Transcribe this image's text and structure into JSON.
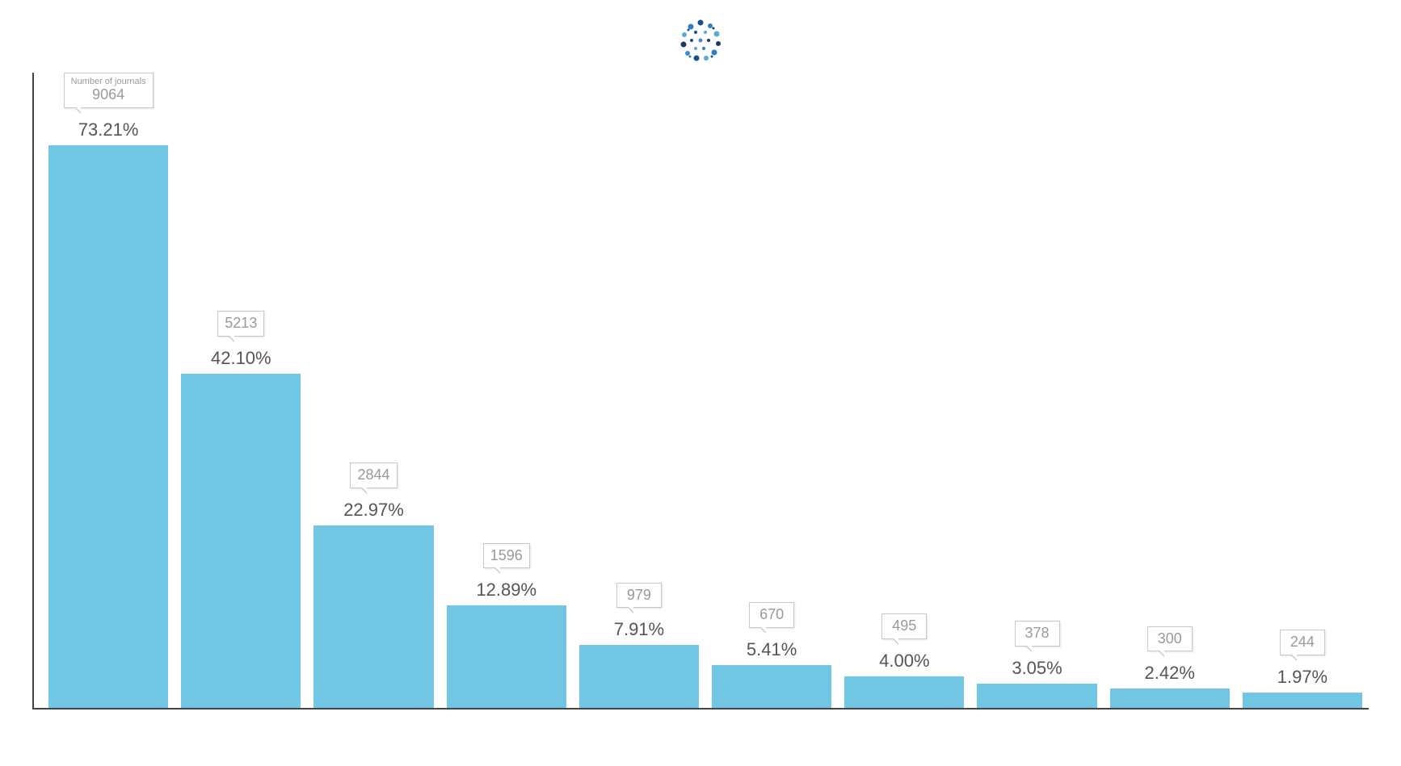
{
  "chart": {
    "type": "bar",
    "logo_colors": [
      "#1a4d8f",
      "#2e7fc1",
      "#5aa9d6",
      "#1a3a6b",
      "#3e8ecf"
    ],
    "bar_color": "#71c7e3",
    "axis_color": "#444444",
    "background_color": "#ffffff",
    "callout_border": "#c8c8c8",
    "callout_text_color": "#9a9a9a",
    "pct_text_color": "#555555",
    "pct_fontsize": 22,
    "callout_fontsize": 18,
    "first_callout_caption": "Number of journals",
    "y_max_pct": 80,
    "bars": [
      {
        "count": 9064,
        "pct": "73.21%",
        "pct_val": 73.21
      },
      {
        "count": 5213,
        "pct": "42.10%",
        "pct_val": 42.1
      },
      {
        "count": 2844,
        "pct": "22.97%",
        "pct_val": 22.97
      },
      {
        "count": 1596,
        "pct": "12.89%",
        "pct_val": 12.89
      },
      {
        "count": 979,
        "pct": "7.91%",
        "pct_val": 7.91
      },
      {
        "count": 670,
        "pct": "5.41%",
        "pct_val": 5.41
      },
      {
        "count": 495,
        "pct": "4.00%",
        "pct_val": 4.0
      },
      {
        "count": 378,
        "pct": "3.05%",
        "pct_val": 3.05
      },
      {
        "count": 300,
        "pct": "2.42%",
        "pct_val": 2.42
      },
      {
        "count": 244,
        "pct": "1.97%",
        "pct_val": 1.97
      }
    ]
  }
}
